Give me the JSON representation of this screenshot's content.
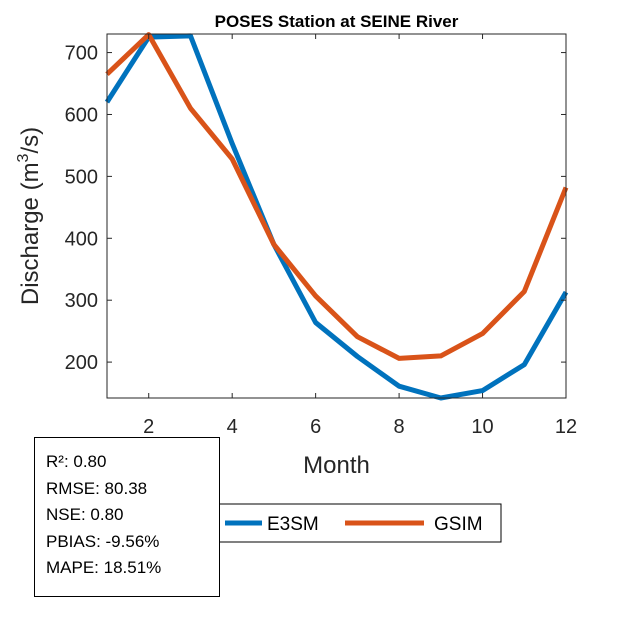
{
  "chart_data": {
    "type": "line",
    "title": "POSES  Station at  SEINE  River",
    "xlabel": "Month",
    "ylabel_main": "Discharge (m",
    "ylabel_sup": "3",
    "ylabel_tail": "/s)",
    "xlim": [
      1,
      12
    ],
    "ylim": [
      142,
      730
    ],
    "xticks": [
      2,
      4,
      6,
      8,
      10,
      12
    ],
    "yticks": [
      200,
      300,
      400,
      500,
      600,
      700
    ],
    "x": [
      1,
      2,
      3,
      4,
      5,
      6,
      7,
      8,
      9,
      10,
      11,
      12
    ],
    "series": [
      {
        "name": "E3SM",
        "color": "#0072BD",
        "values": [
          620,
          725,
          727,
          553,
          390,
          264,
          209,
          161,
          142,
          154,
          196,
          313
        ]
      },
      {
        "name": "GSIM",
        "color": "#D95319",
        "values": [
          665,
          729,
          610,
          528,
          390,
          307,
          241,
          206,
          210,
          246,
          314,
          482
        ]
      }
    ]
  },
  "stats": {
    "r2": "R²: 0.80",
    "rmse": "RMSE: 80.38",
    "nse": "NSE: 0.80",
    "pbias": "PBIAS: -9.56%",
    "mape": "MAPE: 18.51%"
  }
}
